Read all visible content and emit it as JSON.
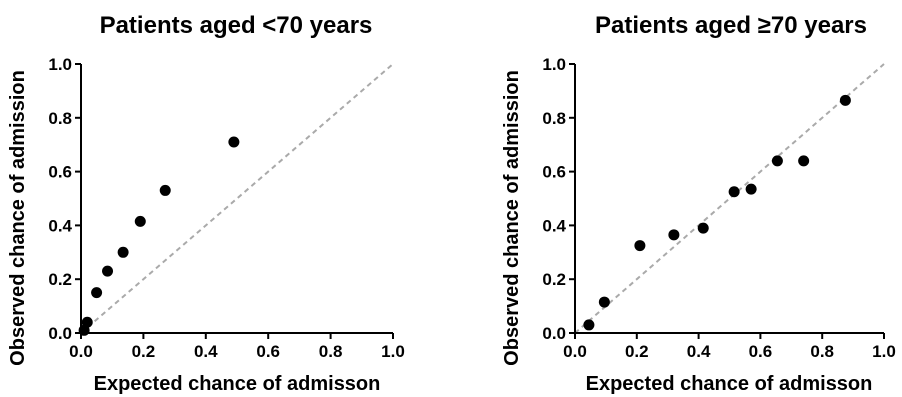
{
  "chart_data": [
    {
      "type": "scatter",
      "title": "Patients aged <70 years",
      "xlabel": "Expected chance of admisson",
      "ylabel": "Observed chance of admission",
      "xlim": [
        0,
        1.0
      ],
      "ylim": [
        0,
        1.0
      ],
      "xticks": [
        "0.0",
        "0.2",
        "0.4",
        "0.6",
        "0.8",
        "1.0"
      ],
      "yticks": [
        "0.0",
        "0.2",
        "0.4",
        "0.6",
        "0.8",
        "1.0"
      ],
      "reference_line": "identity",
      "points": [
        {
          "x": 0.01,
          "y": 0.01
        },
        {
          "x": 0.02,
          "y": 0.04
        },
        {
          "x": 0.05,
          "y": 0.15
        },
        {
          "x": 0.085,
          "y": 0.23
        },
        {
          "x": 0.135,
          "y": 0.3
        },
        {
          "x": 0.19,
          "y": 0.415
        },
        {
          "x": 0.27,
          "y": 0.53
        },
        {
          "x": 0.49,
          "y": 0.71
        }
      ]
    },
    {
      "type": "scatter",
      "title": "Patients aged ≥70 years",
      "xlabel": "Expected chance of admisson",
      "ylabel": "Observed chance of admission",
      "xlim": [
        0,
        1.0
      ],
      "ylim": [
        0,
        1.0
      ],
      "xticks": [
        "0.0",
        "0.2",
        "0.4",
        "0.6",
        "0.8",
        "1.0"
      ],
      "yticks": [
        "0.0",
        "0.2",
        "0.4",
        "0.6",
        "0.8",
        "1.0"
      ],
      "reference_line": "identity",
      "points": [
        {
          "x": 0.045,
          "y": 0.03
        },
        {
          "x": 0.095,
          "y": 0.115
        },
        {
          "x": 0.21,
          "y": 0.325
        },
        {
          "x": 0.32,
          "y": 0.365
        },
        {
          "x": 0.415,
          "y": 0.39
        },
        {
          "x": 0.515,
          "y": 0.525
        },
        {
          "x": 0.57,
          "y": 0.535
        },
        {
          "x": 0.655,
          "y": 0.64
        },
        {
          "x": 0.74,
          "y": 0.64
        },
        {
          "x": 0.875,
          "y": 0.865
        }
      ]
    }
  ]
}
